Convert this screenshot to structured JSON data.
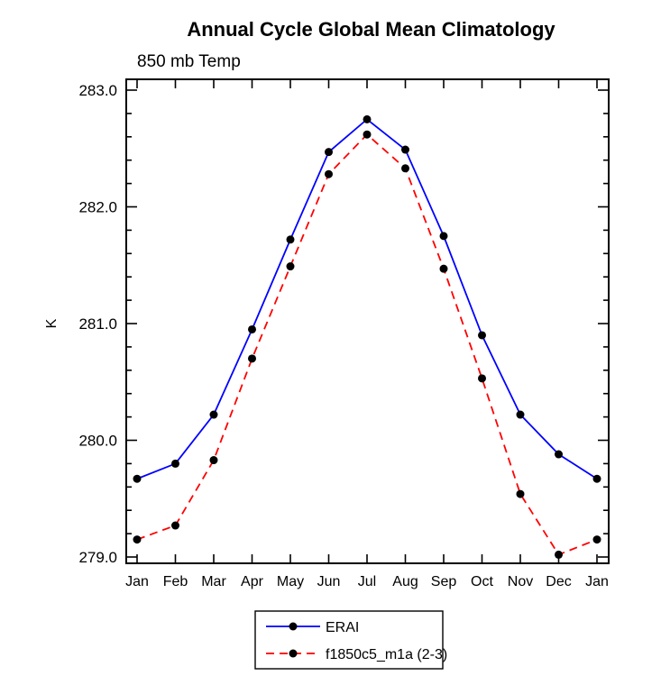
{
  "title": "Annual Cycle Global Mean Climatology",
  "subtitle": "850 mb Temp",
  "chart_data": {
    "type": "line",
    "categories": [
      "Jan",
      "Feb",
      "Mar",
      "Apr",
      "May",
      "Jun",
      "Jul",
      "Aug",
      "Sep",
      "Oct",
      "Nov",
      "Dec",
      "Jan"
    ],
    "series": [
      {
        "name": "ERAI",
        "color": "#0000ff",
        "line_style": "solid",
        "marker": "filled-circle",
        "marker_color": "#000000",
        "values": [
          279.67,
          279.8,
          280.22,
          280.95,
          281.72,
          282.47,
          282.75,
          282.49,
          281.75,
          280.9,
          280.22,
          279.88,
          279.67
        ]
      },
      {
        "name": "f1850c5_m1a (2-3)",
        "color": "#ff0000",
        "line_style": "dashed",
        "marker": "filled-circle",
        "marker_color": "#000000",
        "values": [
          279.15,
          279.27,
          279.83,
          280.7,
          281.49,
          282.28,
          282.62,
          282.33,
          281.47,
          280.53,
          279.54,
          279.02,
          279.15
        ]
      }
    ],
    "xlabel": "",
    "ylabel": "K",
    "ylim": [
      279.0,
      283.0
    ],
    "yticks": [
      279.0,
      280.0,
      281.0,
      282.0,
      283.0
    ],
    "ytick_labels": [
      "279.0",
      "280.0",
      "281.0",
      "282.0",
      "283.0"
    ],
    "grid": false,
    "legend_position": "bottom",
    "frame_color": "#000000",
    "background_color": "#ffffff"
  }
}
